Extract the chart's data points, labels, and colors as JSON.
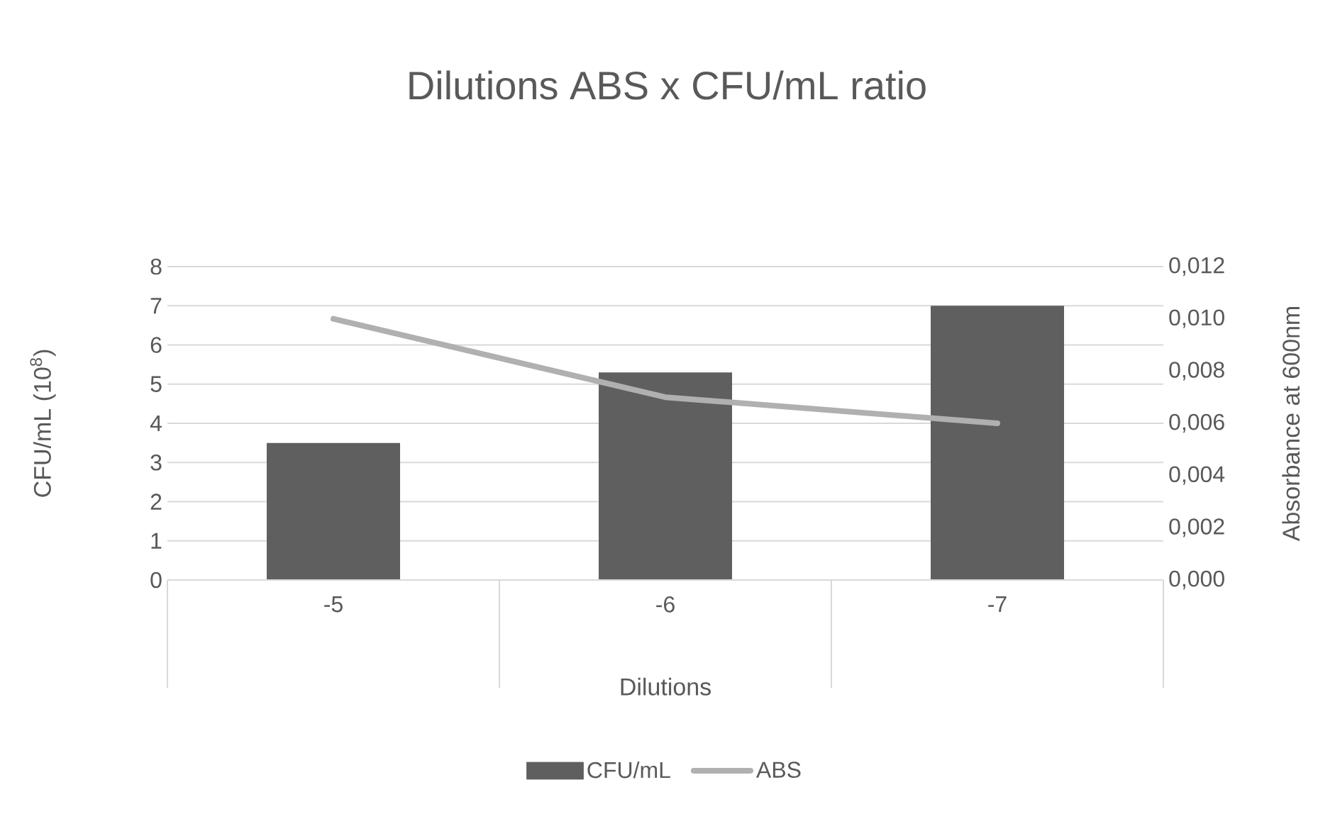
{
  "chart_data": {
    "type": "bar",
    "title": "Dilutions ABS x CFU/mL ratio",
    "xlabel": "Dilutions",
    "ylabel": "CFU/mL (10$^{8}$)",
    "y2label": "Absorbance at 600nm",
    "categories": [
      "-5",
      "-6",
      "-7"
    ],
    "series": [
      {
        "name": "CFU/mL",
        "color": "#5f5f5f",
        "values": [
          3.5,
          5.3,
          7.0
        ]
      },
      {
        "name": "ABS",
        "type": "line",
        "axis": "y2",
        "color": "#b0b0b0",
        "values": [
          0.01,
          0.007,
          0.006
        ]
      }
    ],
    "ylim": [
      0,
      8
    ],
    "yticks": [
      0,
      1,
      2,
      3,
      4,
      5,
      6,
      7,
      8
    ],
    "y2lim": [
      0,
      0.012
    ],
    "y2ticks": [
      {
        "value": 0,
        "label": "0,000"
      },
      {
        "value": 0.002,
        "label": "0,002"
      },
      {
        "value": 0.004,
        "label": "0,004"
      },
      {
        "value": 0.006,
        "label": "0,006"
      },
      {
        "value": 0.008,
        "label": "0,008"
      },
      {
        "value": 0.01,
        "label": "0,010"
      },
      {
        "value": 0.012,
        "label": "0,012"
      }
    ],
    "grid": "y",
    "legend": "bottom"
  }
}
